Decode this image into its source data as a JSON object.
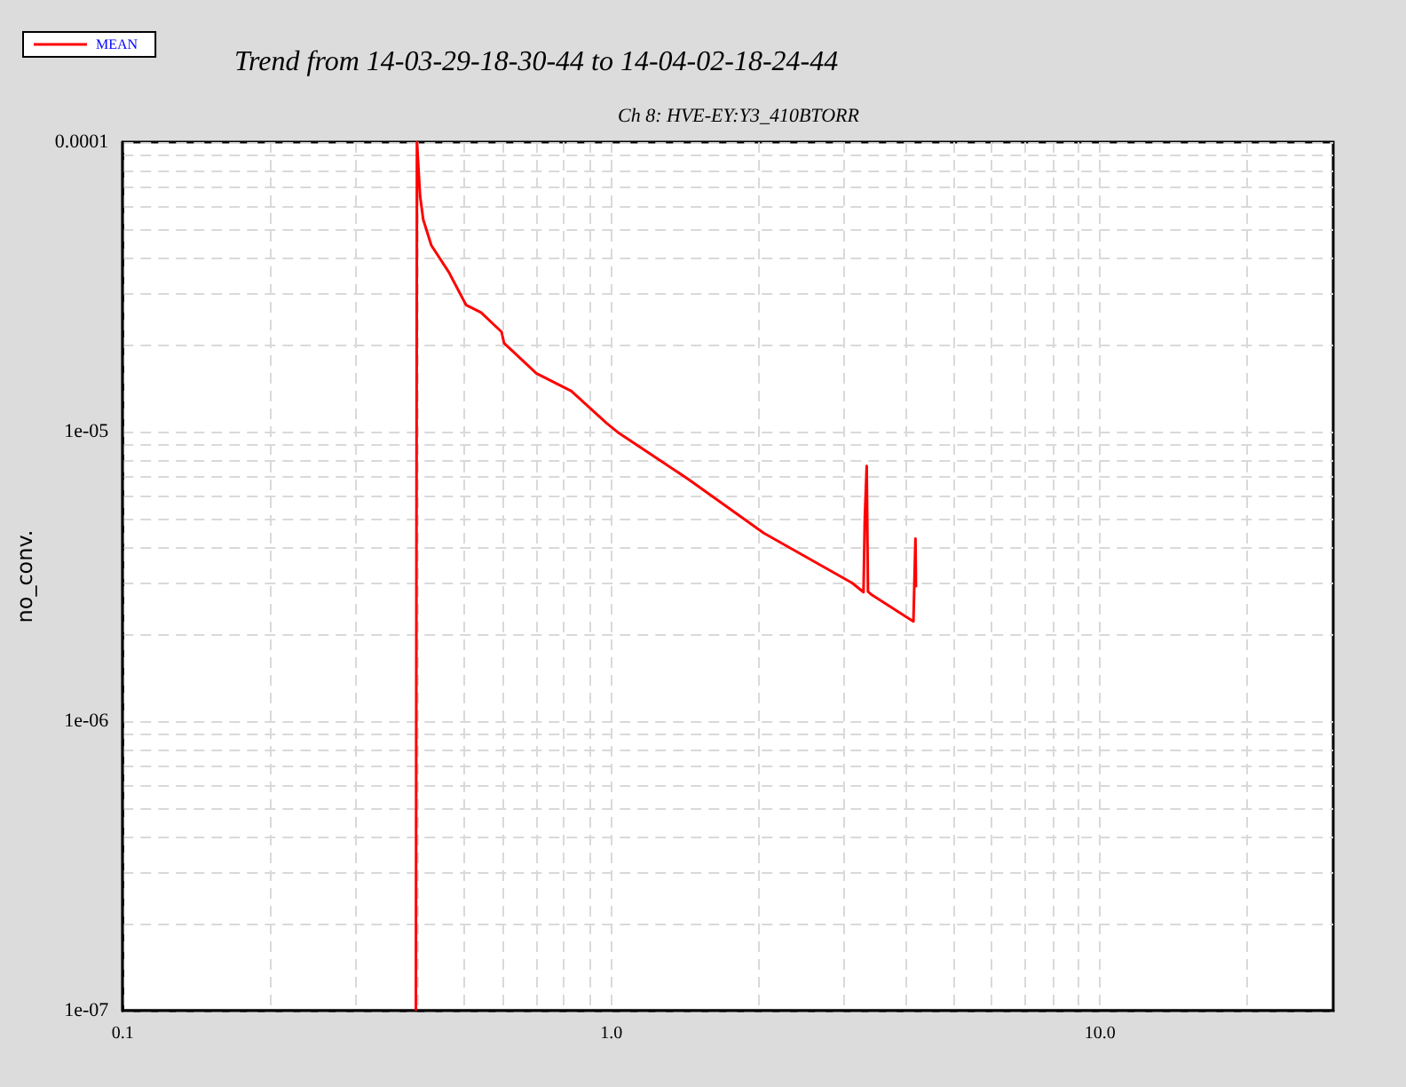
{
  "chart_data": {
    "type": "line",
    "title": "Trend from 14-03-29-18-30-44 to 14-04-02-18-24-44",
    "subtitle": "Ch 8: HVE-EY:Y3_410BTORR",
    "ylabel": "no_conv.",
    "log": "xy",
    "grid": true,
    "legend": "top left",
    "marker": "none",
    "line_style": "solid",
    "xlim": [
      0.1,
      30
    ],
    "ylim": [
      1e-07,
      0.0001
    ],
    "xticks": [
      {
        "value": 0.1,
        "label": "0.1"
      },
      {
        "value": 0.2,
        "label": null
      },
      {
        "value": 0.3,
        "label": null
      },
      {
        "value": 0.4,
        "label": null
      },
      {
        "value": 0.5,
        "label": null
      },
      {
        "value": 0.6,
        "label": null
      },
      {
        "value": 0.7,
        "label": null
      },
      {
        "value": 0.8,
        "label": null
      },
      {
        "value": 0.9,
        "label": null
      },
      {
        "value": 1,
        "label": "1.0"
      },
      {
        "value": 2,
        "label": null
      },
      {
        "value": 3,
        "label": null
      },
      {
        "value": 4,
        "label": null
      },
      {
        "value": 5,
        "label": null
      },
      {
        "value": 6,
        "label": null
      },
      {
        "value": 7,
        "label": null
      },
      {
        "value": 8,
        "label": null
      },
      {
        "value": 9,
        "label": null
      },
      {
        "value": 10,
        "label": "10.0"
      },
      {
        "value": 20,
        "label": null
      }
    ],
    "yticks": [
      {
        "value": 1e-07,
        "label": "1e-07"
      },
      {
        "value": 2e-07,
        "label": null
      },
      {
        "value": 3e-07,
        "label": null
      },
      {
        "value": 4e-07,
        "label": null
      },
      {
        "value": 5e-07,
        "label": null
      },
      {
        "value": 6e-07,
        "label": null
      },
      {
        "value": 7e-07,
        "label": null
      },
      {
        "value": 8e-07,
        "label": null
      },
      {
        "value": 9e-07,
        "label": null
      },
      {
        "value": 1e-06,
        "label": "1e-06"
      },
      {
        "value": 2e-06,
        "label": null
      },
      {
        "value": 3e-06,
        "label": null
      },
      {
        "value": 4e-06,
        "label": null
      },
      {
        "value": 5e-06,
        "label": null
      },
      {
        "value": 6e-06,
        "label": null
      },
      {
        "value": 7e-06,
        "label": null
      },
      {
        "value": 8e-06,
        "label": null
      },
      {
        "value": 9e-06,
        "label": null
      },
      {
        "value": 1e-05,
        "label": "1e-05"
      },
      {
        "value": 2e-05,
        "label": null
      },
      {
        "value": 3e-05,
        "label": null
      },
      {
        "value": 4e-05,
        "label": null
      },
      {
        "value": 5e-05,
        "label": null
      },
      {
        "value": 6e-05,
        "label": null
      },
      {
        "value": 7e-05,
        "label": null
      },
      {
        "value": 8e-05,
        "label": null
      },
      {
        "value": 9e-05,
        "label": null
      },
      {
        "value": 0.0001,
        "label": "0.0001"
      }
    ],
    "series": [
      {
        "name": "MEAN",
        "color": "#ff0000",
        "x": [
          0.398,
          0.4,
          0.406,
          0.412,
          0.428,
          0.465,
          0.504,
          0.541,
          0.596,
          0.603,
          0.702,
          0.828,
          0.977,
          1.03,
          1.44,
          2.05,
          3.11,
          3.28,
          3.3,
          3.33,
          3.35,
          3.41,
          4.15,
          4.19,
          4.2
        ],
        "values": [
          1e-07,
          0.0001,
          6.5e-05,
          5.4e-05,
          4.4e-05,
          3.55e-05,
          2.74e-05,
          2.58e-05,
          2.21e-05,
          2.02e-05,
          1.59e-05,
          1.38e-05,
          1.07e-05,
          9.95e-06,
          6.83e-06,
          4.46e-06,
          3e-06,
          2.79e-06,
          5e-06,
          7.6e-06,
          2.8e-06,
          2.73e-06,
          2.21e-06,
          4.27e-06,
          2.9e-06
        ]
      }
    ]
  }
}
